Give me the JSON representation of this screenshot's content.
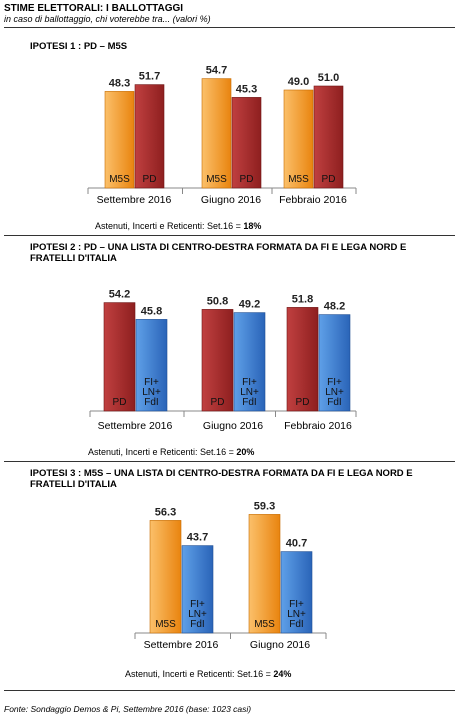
{
  "header": {
    "title": "STIME ELETTORALI:  I BALLOTTAGGI",
    "subtitle": "in caso di ballottaggio, chi voterebbe tra... (valori %)"
  },
  "colors": {
    "M5S": "#f0921e",
    "PD": "#a52a2a",
    "FI": "#3a78c8"
  },
  "chart_data": [
    {
      "type": "bar",
      "heading": "IPOTESI 1 : PD – M5S",
      "categories": [
        "Settembre 2016",
        "Giugno 2016",
        "Febbraio 2016"
      ],
      "series": [
        {
          "name": "M5S",
          "values": [
            48.3,
            54.7,
            49.0
          ],
          "labels": [
            "48.3",
            "54.7",
            "49.0"
          ]
        },
        {
          "name": "PD",
          "values": [
            51.7,
            45.3,
            51.0
          ],
          "labels": [
            "51.7",
            "45.3",
            "51.0"
          ]
        }
      ],
      "note_text": "Astenuti, Incerti e Reticenti: Set.16 = ",
      "note_value": "18%"
    },
    {
      "type": "bar",
      "heading": "IPOTESI 2 : PD – UNA LISTA DI CENTRO-DESTRA FORMATA DA FI E LEGA NORD E FRATELLI D'ITALIA",
      "categories": [
        "Settembre 2016",
        "Giugno 2016",
        "Febbraio 2016"
      ],
      "series": [
        {
          "name": "PD",
          "values": [
            54.2,
            50.8,
            51.8
          ],
          "labels": [
            "54.2",
            "50.8",
            "51.8"
          ]
        },
        {
          "name": "FI+\nLN+\nFdI",
          "values": [
            45.8,
            49.2,
            48.2
          ],
          "labels": [
            "45.8",
            "49.2",
            "48.2"
          ]
        }
      ],
      "note_text": "Astenuti, Incerti e Reticenti: Set.16 = ",
      "note_value": "20%"
    },
    {
      "type": "bar",
      "heading": "IPOTESI 3 : M5S – UNA LISTA DI CENTRO-DESTRA FORMATA DA FI E LEGA NORD E FRATELLI D'ITALIA",
      "categories": [
        "Settembre 2016",
        "Giugno 2016"
      ],
      "series": [
        {
          "name": "M5S",
          "values": [
            56.3,
            59.3
          ],
          "labels": [
            "56.3",
            "59.3"
          ]
        },
        {
          "name": "FI+\nLN+\nFdI",
          "values": [
            43.7,
            40.7
          ],
          "labels": [
            "43.7",
            "40.7"
          ]
        }
      ],
      "note_text": "Astenuti, Incerti e Reticenti: Set.16 = ",
      "note_value": "24%"
    }
  ],
  "source": "Fonte: Sondaggio Demos & Pi, Settembre 2016 (base: 1023 casi)"
}
